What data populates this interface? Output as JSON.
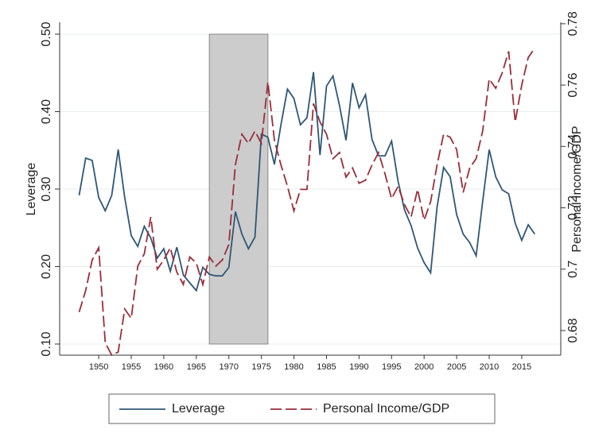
{
  "chart_data": {
    "type": "line",
    "x": [
      1947,
      1948,
      1949,
      1950,
      1951,
      1952,
      1953,
      1954,
      1955,
      1956,
      1957,
      1958,
      1959,
      1960,
      1961,
      1962,
      1963,
      1964,
      1965,
      1966,
      1967,
      1968,
      1969,
      1970,
      1971,
      1972,
      1973,
      1974,
      1975,
      1976,
      1977,
      1978,
      1979,
      1980,
      1981,
      1982,
      1983,
      1984,
      1985,
      1986,
      1987,
      1988,
      1989,
      1990,
      1991,
      1992,
      1993,
      1994,
      1995,
      1996,
      1997,
      1998,
      1999,
      2000,
      2001,
      2002,
      2003,
      2004,
      2005,
      2006,
      2007,
      2008,
      2009,
      2010,
      2011,
      2012,
      2013,
      2014,
      2015,
      2016,
      2017
    ],
    "series": [
      {
        "name": "Leverage",
        "color": "#2e5777",
        "dash": "solid",
        "axis": "y",
        "values": [
          0.292,
          0.34,
          0.337,
          0.289,
          0.272,
          0.292,
          0.351,
          0.289,
          0.24,
          0.226,
          0.252,
          0.237,
          0.211,
          0.223,
          0.194,
          0.225,
          0.189,
          0.179,
          0.169,
          0.199,
          0.19,
          0.188,
          0.188,
          0.199,
          0.271,
          0.242,
          0.223,
          0.238,
          0.371,
          0.367,
          0.332,
          0.383,
          0.429,
          0.417,
          0.383,
          0.392,
          0.451,
          0.344,
          0.433,
          0.446,
          0.408,
          0.363,
          0.437,
          0.405,
          0.422,
          0.364,
          0.343,
          0.343,
          0.362,
          0.31,
          0.273,
          0.253,
          0.224,
          0.205,
          0.192,
          0.277,
          0.328,
          0.316,
          0.267,
          0.242,
          0.231,
          0.214,
          0.284,
          0.351,
          0.316,
          0.299,
          0.294,
          0.256,
          0.234,
          0.254,
          0.242
        ]
      },
      {
        "name": "Personal Income/GDP",
        "color": "#9a2d3b",
        "dash": "dashed",
        "axis": "y2",
        "values": [
          0.686,
          0.693,
          0.703,
          0.707,
          0.676,
          0.672,
          0.673,
          0.687,
          0.684,
          0.701,
          0.705,
          0.717,
          0.7,
          0.703,
          0.707,
          0.699,
          0.695,
          0.704,
          0.702,
          0.695,
          0.704,
          0.701,
          0.703,
          0.708,
          0.734,
          0.744,
          0.741,
          0.745,
          0.741,
          0.761,
          0.742,
          0.734,
          0.727,
          0.719,
          0.726,
          0.726,
          0.754,
          0.748,
          0.744,
          0.736,
          0.738,
          0.73,
          0.733,
          0.728,
          0.729,
          0.734,
          0.738,
          0.731,
          0.723,
          0.727,
          0.721,
          0.717,
          0.726,
          0.716,
          0.722,
          0.734,
          0.744,
          0.743,
          0.739,
          0.725,
          0.733,
          0.736,
          0.745,
          0.762,
          0.759,
          0.764,
          0.771,
          0.748,
          0.76,
          0.769,
          0.772
        ]
      }
    ],
    "xlim": [
      1944,
      2021
    ],
    "xticks": [
      1950,
      1955,
      1960,
      1965,
      1970,
      1975,
      1980,
      1985,
      1990,
      1995,
      2000,
      2005,
      2010,
      2015
    ],
    "ylim": [
      0.1,
      0.5
    ],
    "yticks": [
      {
        "value": 0.1,
        "label": "0.10"
      },
      {
        "value": 0.2,
        "label": "0.20"
      },
      {
        "value": 0.3,
        "label": "0.30"
      },
      {
        "value": 0.4,
        "label": "0.40"
      },
      {
        "value": 0.5,
        "label": "0.50"
      }
    ],
    "y2lim": [
      0.6756,
      0.7766
    ],
    "y2ticks": [
      0.68,
      0.7,
      0.72,
      0.74,
      0.76,
      0.78
    ],
    "ylabel": "Leverage",
    "y2label": "Personal Income/GDP",
    "shaded_range": [
      1967,
      1976
    ],
    "grid": true,
    "legend": "bottom"
  }
}
